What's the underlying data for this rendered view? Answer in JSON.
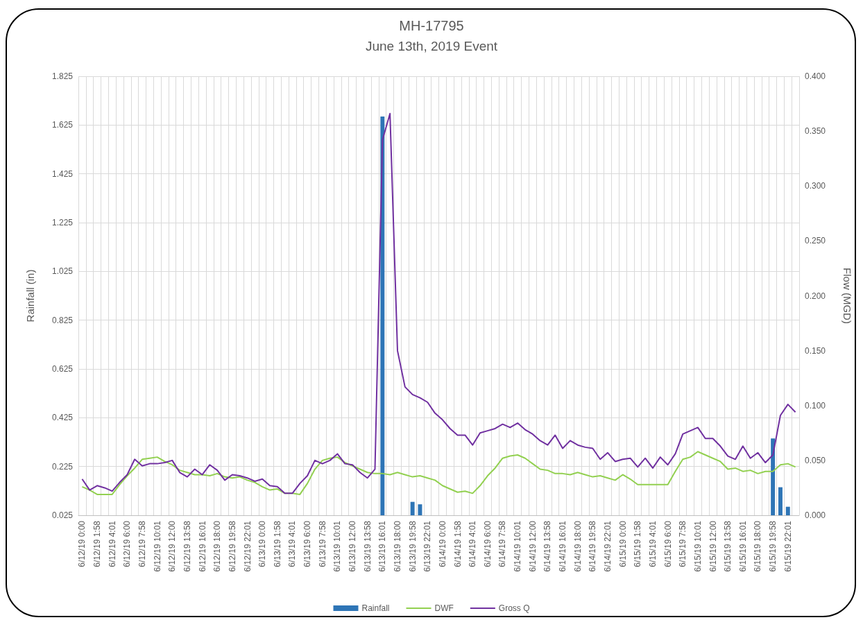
{
  "chart_data": {
    "type": "line",
    "title": "MH-17795",
    "subtitle": "June 13th, 2019 Event",
    "ylabel": "Rainfall (in)",
    "y2label": "Flow (MGD)",
    "categories": [
      "6/12/19 0:00",
      null,
      "6/12/19 1:58",
      null,
      "6/12/19 4:01",
      null,
      "6/12/19 6:00",
      null,
      "6/12/19 7:58",
      null,
      "6/12/19 10:01",
      null,
      "6/12/19 12:00",
      null,
      "6/12/19 13:58",
      null,
      "6/12/19 16:01",
      null,
      "6/12/19 18:00",
      null,
      "6/12/19 19:58",
      null,
      "6/12/19 22:01",
      null,
      "6/13/19 0:00",
      null,
      "6/13/19 1:58",
      null,
      "6/13/19 4:01",
      null,
      "6/13/19 6:00",
      null,
      "6/13/19 7:58",
      null,
      "6/13/19 10:01",
      null,
      "6/13/19 12:00",
      null,
      "6/13/19 13:58",
      null,
      "6/13/19 16:01",
      null,
      "6/13/19 18:00",
      null,
      "6/13/19 19:58",
      null,
      "6/13/19 22:01",
      null,
      "6/14/19 0:00",
      null,
      "6/14/19 1:58",
      null,
      "6/14/19 4:01",
      null,
      "6/14/19 6:00",
      null,
      "6/14/19 7:58",
      null,
      "6/14/19 10:01",
      null,
      "6/14/19 12:00",
      null,
      "6/14/19 13:58",
      null,
      "6/14/19 16:01",
      null,
      "6/14/19 18:00",
      null,
      "6/14/19 19:58",
      null,
      "6/14/19 22:01",
      null,
      "6/15/19 0:00",
      null,
      "6/15/19 1:58",
      null,
      "6/15/19 4:01",
      null,
      "6/15/19 6:00",
      null,
      "6/15/19 7:58",
      null,
      "6/15/19 10:01",
      null,
      "6/15/19 12:00",
      null,
      "6/15/19 13:58",
      null,
      "6/15/19 16:01",
      null,
      "6/15/19 18:00",
      null,
      "6/15/19 19:58",
      null,
      "6/15/19 22:01",
      null
    ],
    "series": [
      {
        "name": "Rainfall",
        "type": "bar",
        "color": "#2e75b6",
        "values": [
          null,
          null,
          null,
          null,
          null,
          null,
          null,
          null,
          null,
          null,
          null,
          null,
          null,
          null,
          null,
          null,
          null,
          null,
          null,
          null,
          null,
          null,
          null,
          null,
          null,
          null,
          null,
          null,
          null,
          null,
          null,
          null,
          null,
          null,
          null,
          null,
          null,
          null,
          null,
          null,
          1.66,
          null,
          null,
          null,
          0.08,
          0.07,
          null,
          null,
          null,
          null,
          null,
          null,
          null,
          null,
          null,
          null,
          null,
          null,
          null,
          null,
          null,
          null,
          null,
          null,
          null,
          null,
          null,
          null,
          null,
          null,
          null,
          null,
          null,
          null,
          null,
          null,
          null,
          null,
          null,
          null,
          null,
          null,
          null,
          null,
          null,
          null,
          null,
          null,
          null,
          null,
          null,
          null,
          0.34,
          0.14,
          0.06,
          null
        ]
      },
      {
        "name": "DWF",
        "axis": "y2",
        "color": "#92d050",
        "values": [
          0.026,
          0.023,
          0.019,
          0.019,
          0.019,
          0.028,
          0.036,
          0.043,
          0.051,
          0.052,
          0.053,
          0.049,
          0.046,
          0.041,
          0.039,
          0.037,
          0.037,
          0.036,
          0.038,
          0.035,
          0.034,
          0.035,
          0.032,
          0.03,
          0.026,
          0.023,
          0.024,
          0.02,
          0.02,
          0.019,
          0.029,
          0.042,
          0.05,
          0.052,
          0.053,
          0.048,
          0.045,
          0.042,
          0.039,
          0.038,
          0.038,
          0.037,
          0.039,
          0.037,
          0.035,
          0.036,
          0.034,
          0.032,
          0.027,
          0.024,
          0.021,
          0.022,
          0.02,
          0.027,
          0.036,
          0.043,
          0.052,
          0.054,
          0.055,
          0.052,
          0.047,
          0.042,
          0.041,
          0.038,
          0.038,
          0.037,
          0.039,
          0.037,
          0.035,
          0.036,
          0.034,
          0.032,
          0.037,
          0.033,
          0.028,
          0.028,
          0.028,
          0.028,
          0.028,
          0.04,
          0.051,
          0.053,
          0.058,
          0.055,
          0.052,
          0.049,
          0.042,
          0.043,
          0.04,
          0.041,
          0.038,
          0.04,
          0.04,
          0.046,
          0.047,
          0.044
        ]
      },
      {
        "name": "Gross Q",
        "axis": "y2",
        "color": "#7030a0",
        "values": [
          0.033,
          0.023,
          0.027,
          0.025,
          0.022,
          0.03,
          0.037,
          0.051,
          0.045,
          0.047,
          0.047,
          0.048,
          0.05,
          0.039,
          0.035,
          0.042,
          0.037,
          0.046,
          0.041,
          0.032,
          0.037,
          0.036,
          0.034,
          0.031,
          0.033,
          0.027,
          0.026,
          0.02,
          0.02,
          0.029,
          0.036,
          0.05,
          0.047,
          0.05,
          0.056,
          0.047,
          0.046,
          0.039,
          0.034,
          0.042,
          0.342,
          0.366,
          0.15,
          0.117,
          0.11,
          0.107,
          0.103,
          0.093,
          0.087,
          0.079,
          0.073,
          0.073,
          0.064,
          0.075,
          0.077,
          0.079,
          0.083,
          0.08,
          0.084,
          0.078,
          0.074,
          0.068,
          0.064,
          0.073,
          0.061,
          0.068,
          0.064,
          0.062,
          0.061,
          0.051,
          0.057,
          0.049,
          0.051,
          0.052,
          0.044,
          0.052,
          0.043,
          0.053,
          0.046,
          0.056,
          0.074,
          0.077,
          0.08,
          0.07,
          0.07,
          0.063,
          0.054,
          0.051,
          0.063,
          0.052,
          0.057,
          0.048,
          0.055,
          0.091,
          0.101,
          0.094
        ]
      }
    ],
    "ylim": [
      0.025,
      1.825
    ],
    "yticks": [
      0.025,
      0.225,
      0.425,
      0.625,
      0.825,
      1.025,
      1.225,
      1.425,
      1.625,
      1.825
    ],
    "y2lim": [
      0,
      0.4
    ],
    "y2ticks": [
      {
        "value": 0,
        "label": "0.000"
      },
      {
        "value": 0.05,
        "label": "0.050"
      },
      {
        "value": 0.1,
        "label": "0.100"
      },
      {
        "value": 0.15,
        "label": "0.150"
      },
      {
        "value": 0.2,
        "label": "0.200"
      },
      {
        "value": 0.25,
        "label": "0.250"
      },
      {
        "value": 0.3,
        "label": "0.300"
      },
      {
        "value": 0.35,
        "label": "0.350"
      },
      {
        "value": 0.4,
        "label": "0.400"
      }
    ],
    "grid": true,
    "legend": "bottom",
    "marker": "none"
  }
}
